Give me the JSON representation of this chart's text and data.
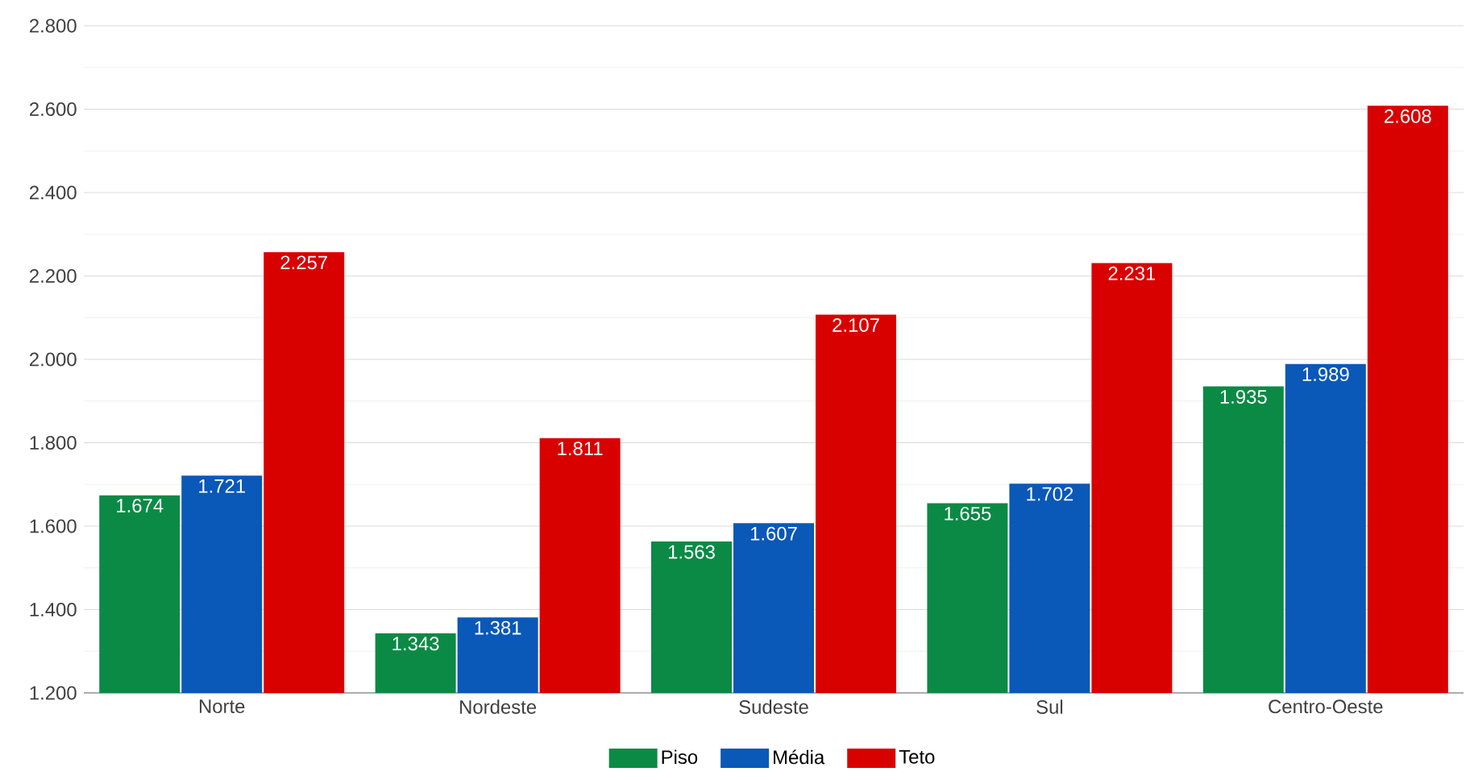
{
  "chart_data": {
    "type": "bar",
    "categories": [
      "Norte",
      "Nordeste",
      "Sudeste",
      "Sul",
      "Centro-Oeste"
    ],
    "series": [
      {
        "name": "Piso",
        "color": "#0b8a45",
        "values": [
          1674,
          1343,
          1563,
          1655,
          1935
        ],
        "value_labels": [
          "1.674",
          "1.343",
          "1.563",
          "1.655",
          "1.935"
        ]
      },
      {
        "name": "Média",
        "color": "#0a58b8",
        "values": [
          1721,
          1381,
          1607,
          1702,
          1989
        ],
        "value_labels": [
          "1.721",
          "1.381",
          "1.607",
          "1.702",
          "1.989"
        ]
      },
      {
        "name": "Teto",
        "color": "#d90000",
        "values": [
          2257,
          1811,
          2107,
          2231,
          2608
        ],
        "value_labels": [
          "2.257",
          "1.811",
          "2.107",
          "2.231",
          "2.608"
        ]
      }
    ],
    "ylim": [
      1200,
      2800
    ],
    "yticks": [
      {
        "value": 1200,
        "label": "1.200"
      },
      {
        "value": 1400,
        "label": "1.400"
      },
      {
        "value": 1600,
        "label": "1.600"
      },
      {
        "value": 1800,
        "label": "1.800"
      },
      {
        "value": 2000,
        "label": "2.000"
      },
      {
        "value": 2200,
        "label": "2.200"
      },
      {
        "value": 2400,
        "label": "2.400"
      },
      {
        "value": 2600,
        "label": "2.600"
      },
      {
        "value": 2800,
        "label": "2.800"
      }
    ],
    "grid": "y",
    "legend": "bottom"
  }
}
